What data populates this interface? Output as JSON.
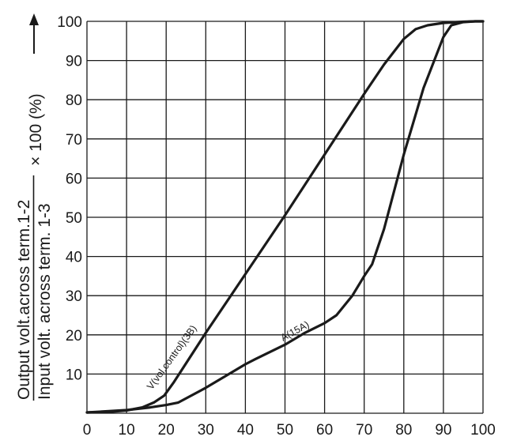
{
  "chart_data": {
    "type": "line",
    "xlim": [
      0,
      100
    ],
    "ylim": [
      0,
      100
    ],
    "x_ticks": [
      "0",
      "10",
      "20",
      "30",
      "40",
      "50",
      "60",
      "70",
      "80",
      "90",
      "100"
    ],
    "y_ticks": [
      "10",
      "20",
      "30",
      "40",
      "50",
      "60",
      "70",
      "80",
      "90",
      "100"
    ],
    "grid": true,
    "ylabel": {
      "numerator": "Output volt.across term.1-2",
      "denominator": "Input volt. across term. 1-3",
      "suffix": "× 100 (%)",
      "arrow_icon": "arrow-up-icon"
    },
    "series": [
      {
        "name": "V(vol.control)(3B)",
        "x": [
          0,
          5,
          10,
          14,
          17,
          19.5,
          22,
          30,
          40,
          50,
          60,
          70,
          75,
          80,
          83,
          86,
          90,
          95,
          98,
          100
        ],
        "y": [
          0.2,
          0.3,
          0.7,
          1.5,
          2.8,
          4.5,
          8,
          20.5,
          35.5,
          50.5,
          66,
          81.5,
          89,
          95.5,
          98,
          99,
          99.6,
          99.9,
          100,
          100
        ]
      },
      {
        "name": "A(15A)",
        "x": [
          0,
          10,
          16,
          20,
          23,
          30,
          35,
          40,
          42.5,
          50,
          55,
          60,
          63,
          67,
          70,
          72,
          75,
          80,
          85,
          90,
          92,
          95,
          98,
          100
        ],
        "y": [
          0.2,
          0.8,
          1.5,
          2.1,
          2.7,
          6.5,
          9.5,
          12.5,
          13.8,
          17.5,
          20.5,
          23,
          25,
          30,
          35,
          38,
          47,
          66,
          83,
          96,
          99,
          99.8,
          100,
          100
        ]
      }
    ],
    "annotations": [
      "V(vol.control)(3B)",
      "A(15A)"
    ]
  }
}
